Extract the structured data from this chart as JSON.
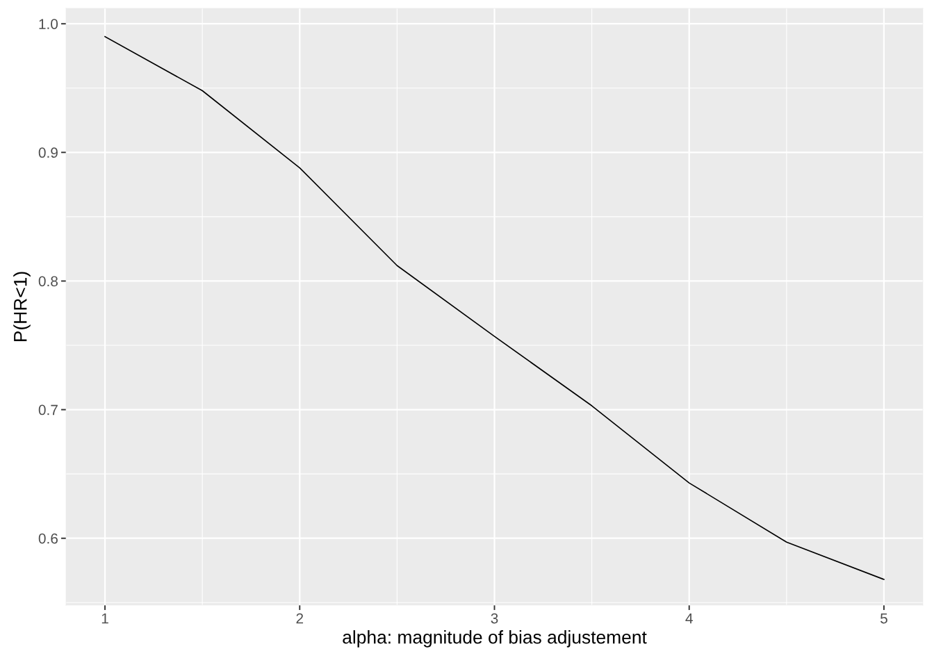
{
  "chart_data": {
    "type": "line",
    "xlabel": "alpha: magnitude of bias adjustement",
    "ylabel": "P(HR<1)",
    "x": [
      1,
      1.5,
      2,
      2.5,
      3,
      3.5,
      4,
      4.5,
      5
    ],
    "series": [
      {
        "color": "#000000",
        "values": [
          0.99,
          0.948,
          0.888,
          0.812,
          0.757,
          0.703,
          0.643,
          0.597,
          0.568
        ]
      }
    ],
    "xlim": [
      0.8,
      5.2
    ],
    "ylim": [
      0.548,
      1.012
    ],
    "xticks": [
      1,
      {
        "value": 1.5,
        "label": null
      },
      2,
      {
        "value": 2.5,
        "label": null
      },
      3,
      {
        "value": 3.5,
        "label": null
      },
      4,
      {
        "value": 4.5,
        "label": null
      },
      5
    ],
    "yticks": [
      {
        "value": 0.55,
        "label": null
      },
      0.6,
      {
        "value": 0.65,
        "label": null
      },
      0.7,
      {
        "value": 0.75,
        "label": null
      },
      0.8,
      {
        "value": 0.85,
        "label": null
      },
      0.9,
      {
        "value": 0.95,
        "label": null
      },
      {
        "value": 1,
        "label": "1.0"
      }
    ],
    "grid": true
  }
}
